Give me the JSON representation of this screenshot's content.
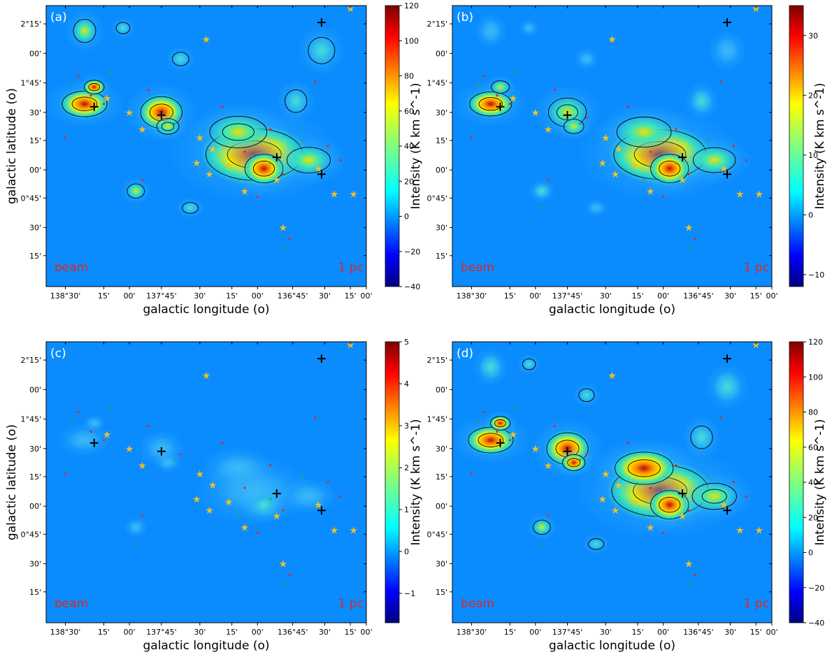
{
  "chart_data": [
    {
      "type": "heatmap",
      "panel_label": "(a)",
      "xlabel": "galactic longitude (o)",
      "ylabel": "galactic latitude (o)",
      "x_ticks": [
        "138°30'",
        "15'",
        "00'",
        "137°45'",
        "30'",
        "15'",
        "00'",
        "136°45'",
        "30'",
        "15'",
        "00'"
      ],
      "y_ticks": [
        "2°15'",
        "00'",
        "1°45'",
        "30'",
        "15'",
        "00'",
        "0°45'",
        "30'",
        "15'"
      ],
      "colorbar": {
        "label": "Intensity (K km s^-1)",
        "range": [
          -40,
          120
        ],
        "ticks": [
          "120",
          "100",
          "80",
          "60",
          "40",
          "20",
          "0",
          "−20",
          "−40"
        ]
      },
      "annotations": [
        "beam",
        "1 pc"
      ]
    },
    {
      "type": "heatmap",
      "panel_label": "(b)",
      "xlabel": "galactic longitude (o)",
      "ylabel": "",
      "x_ticks": [
        "138°30'",
        "15'",
        "00'",
        "137°45'",
        "30'",
        "15'",
        "00'",
        "136°45'",
        "30'",
        "15'",
        "00'"
      ],
      "y_ticks": [
        "2°15'",
        "00'",
        "1°45'",
        "30'",
        "15'",
        "00'",
        "0°45'",
        "30'",
        "15'"
      ],
      "colorbar": {
        "label": "Intensity (K km s^-1)",
        "range": [
          -12,
          35
        ],
        "ticks": [
          "30",
          "20",
          "10",
          "0",
          "−10"
        ]
      },
      "annotations": [
        "beam",
        "1 pc"
      ]
    },
    {
      "type": "heatmap",
      "panel_label": "(c)",
      "xlabel": "galactic longitude (o)",
      "ylabel": "galactic latitude (o)",
      "x_ticks": [
        "138°30'",
        "15'",
        "00'",
        "137°45'",
        "30'",
        "15'",
        "00'",
        "136°45'",
        "30'",
        "15'",
        "00'"
      ],
      "y_ticks": [
        "2°15'",
        "00'",
        "1°45'",
        "30'",
        "15'",
        "00'",
        "0°45'",
        "30'",
        "15'"
      ],
      "colorbar": {
        "label": "Intensity (K km s^-1)",
        "range": [
          -1.7,
          5
        ],
        "ticks": [
          "5",
          "4",
          "3",
          "2",
          "1",
          "0",
          "−1"
        ]
      },
      "annotations": [
        "beam",
        "1 pc"
      ]
    },
    {
      "type": "heatmap",
      "panel_label": "(d)",
      "xlabel": "galactic longitude (o)",
      "ylabel": "",
      "x_ticks": [
        "138°30'",
        "15'",
        "00'",
        "137°45'",
        "30'",
        "15'",
        "00'",
        "136°45'",
        "30'",
        "15'",
        "00'"
      ],
      "y_ticks": [
        "2°15'",
        "00'",
        "1°45'",
        "30'",
        "15'",
        "00'",
        "0°45'",
        "30'",
        "15'"
      ],
      "colorbar": {
        "label": "Intensity (K km s^-1)",
        "range": [
          -40,
          120
        ],
        "ticks": [
          "120",
          "100",
          "80",
          "60",
          "40",
          "20",
          "0",
          "−20",
          "−40"
        ]
      },
      "annotations": [
        "beam",
        "1 pc"
      ]
    }
  ],
  "colors": {
    "background_map": "#0a8cff",
    "star_marker": "#f0c020",
    "red_point": "#e8241c",
    "green_point": "#2aa84a",
    "contour": "#000000"
  }
}
